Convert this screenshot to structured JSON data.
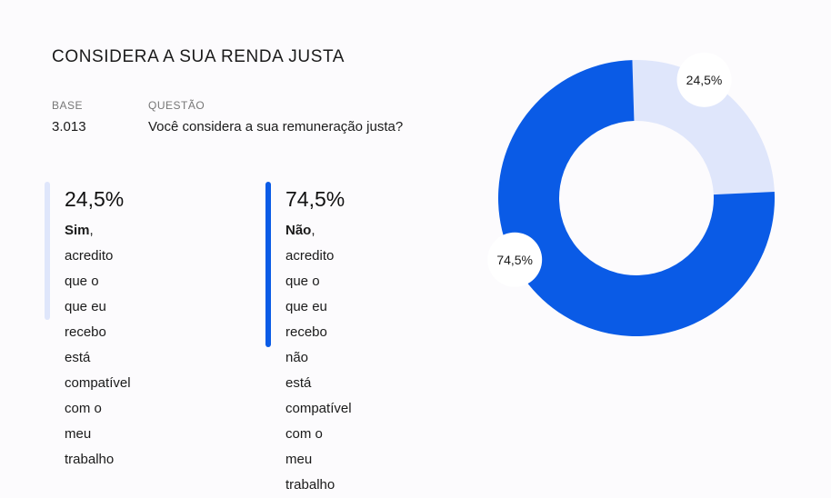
{
  "title": "CONSIDERA A SUA RENDA JUSTA",
  "base": {
    "label": "BASE",
    "value": "3.013"
  },
  "question": {
    "label": "QUESTÃO",
    "value": "Você considera a sua remuneração justa?"
  },
  "stats": [
    {
      "pct": "24,5%",
      "bold": "Sim",
      "lines": [
        ", acredito que o",
        "que eu recebo está",
        "compatível com o",
        "meu trabalho"
      ],
      "color": "#dfe6fb"
    },
    {
      "pct": "74,5%",
      "bold": "Não",
      "lines": [
        ", acredito que o",
        "que eu recebo não",
        "está compatível",
        "com o meu",
        "trabalho"
      ],
      "color": "#0a5be6"
    }
  ],
  "chart_data": {
    "type": "pie",
    "categories": [
      "Sim",
      "Não"
    ],
    "values": [
      24.5,
      74.5
    ],
    "labels": [
      "24,5%",
      "74,5%"
    ],
    "colors": [
      "#dfe6fb",
      "#0a5be6"
    ],
    "donut": true
  }
}
